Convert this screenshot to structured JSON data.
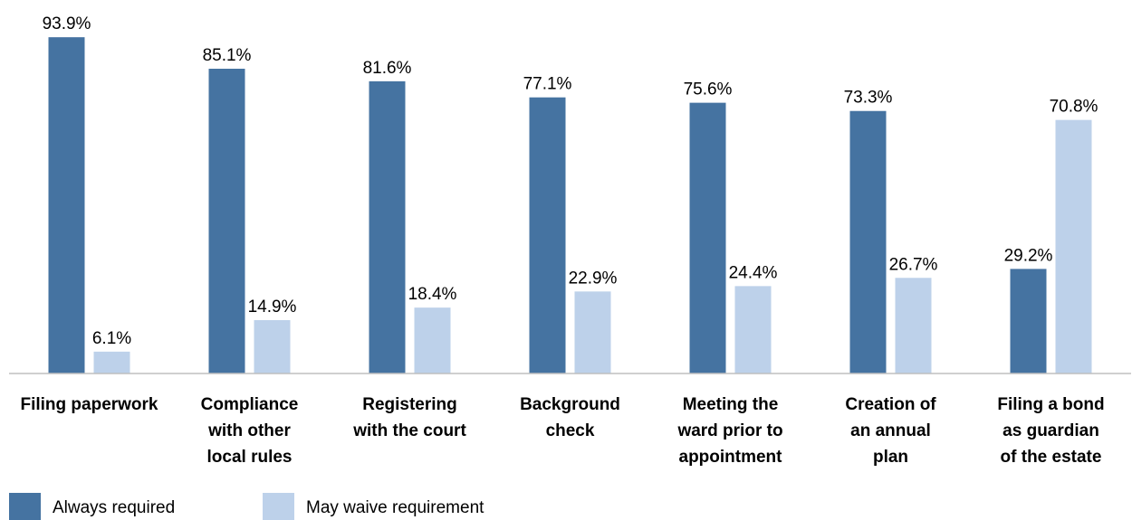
{
  "chart_data": {
    "type": "bar",
    "categories": [
      [
        "Filing paperwork"
      ],
      [
        "Compliance",
        "with other",
        "local rules"
      ],
      [
        "Registering",
        "with the court"
      ],
      [
        "Background",
        "check"
      ],
      [
        "Meeting the",
        "ward prior to",
        "appointment"
      ],
      [
        "Creation of",
        "an annual",
        "plan"
      ],
      [
        "Filing a bond",
        "as guardian",
        "of the estate"
      ]
    ],
    "series": [
      {
        "name": "Always required",
        "color": "#4573a1",
        "values": [
          93.9,
          85.1,
          81.6,
          77.1,
          75.6,
          73.3,
          29.2
        ],
        "value_labels": [
          "93.9%",
          "85.1%",
          "81.6%",
          "77.1%",
          "75.6%",
          "73.3%",
          "29.2%"
        ]
      },
      {
        "name": "May waive requirement",
        "color": "#bdd1ea",
        "values": [
          6.1,
          14.9,
          18.4,
          22.9,
          24.4,
          26.7,
          70.8
        ],
        "value_labels": [
          "6.1%",
          "14.9%",
          "18.4%",
          "22.9%",
          "24.4%",
          "26.7%",
          "70.8%"
        ]
      }
    ],
    "ylim": [
      0,
      100
    ]
  }
}
